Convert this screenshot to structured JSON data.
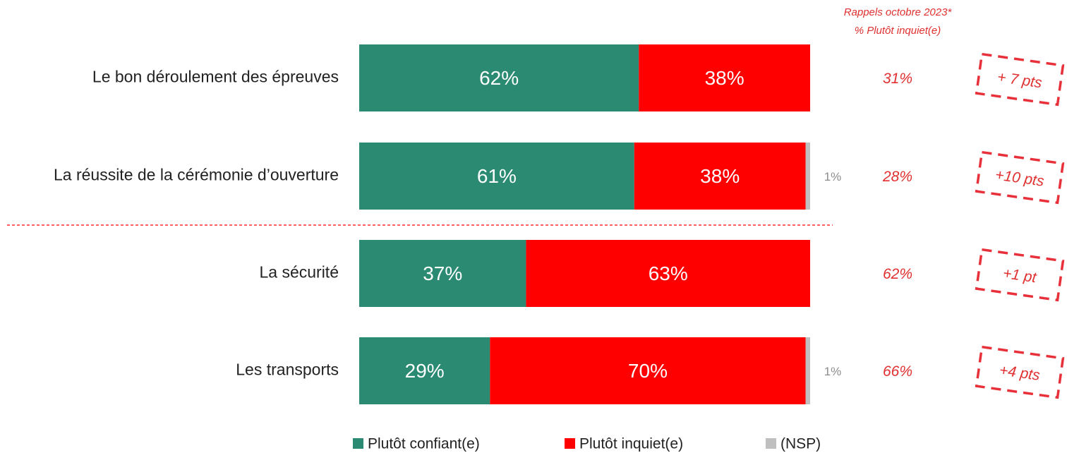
{
  "chart_data": {
    "type": "stacked-bar-horizontal",
    "categories": [
      "Le bon déroulement des épreuves",
      "La réussite de la cérémonie d’ouverture",
      "La sécurité",
      "Les transports"
    ],
    "series": [
      {
        "name": "Plutôt confiant(e)",
        "color": "#2a8a72",
        "values": [
          62,
          61,
          37,
          29
        ],
        "value_labels": [
          "62%",
          "61%",
          "37%",
          "29%"
        ]
      },
      {
        "name": "Plutôt inquiet(e)",
        "color": "#ff0000",
        "values": [
          38,
          38,
          63,
          70
        ],
        "value_labels": [
          "38%",
          "38%",
          "63%",
          "70%"
        ]
      },
      {
        "name": "(NSP)",
        "color": "#bfbfbf",
        "values": [
          0,
          1,
          0,
          1
        ],
        "value_labels": [
          null,
          "1%",
          null,
          "1%"
        ]
      }
    ],
    "xlim": [
      0,
      100
    ],
    "recall": {
      "title": [
        "Rappels octobre 2023*",
        "% Plutôt inquiet(e)"
      ],
      "values": [
        31,
        28,
        62,
        66
      ],
      "value_labels": [
        "31%",
        "28%",
        "62%",
        "66%"
      ]
    },
    "change": {
      "values": [
        7,
        10,
        1,
        4
      ],
      "value_labels": [
        "+ 7 pts",
        "+10 pts",
        "+1 pt",
        "+4 pts"
      ]
    }
  }
}
